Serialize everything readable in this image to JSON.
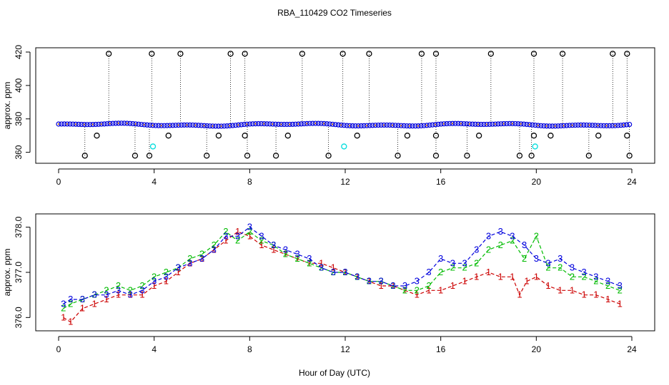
{
  "title": "RBA_110429  CO2 Timeseries",
  "xlabel": "Hour of Day (UTC)",
  "colors": {
    "marker": "#000000",
    "series1": "#cc0000",
    "series2": "#00bb00",
    "series3": "#0000dd",
    "highlight": "#00dddd"
  },
  "chart_data": [
    {
      "type": "scatter",
      "panel": "top",
      "ylabel": "approx. ppm",
      "xlim": [
        0,
        24
      ],
      "ylim": [
        356,
        420
      ],
      "xticks": [
        0,
        4,
        8,
        12,
        16,
        20,
        24
      ],
      "yticks": [
        360,
        380,
        400,
        420
      ],
      "baseline": 376.5,
      "spikes_high": [
        2.1,
        3.9,
        5.1,
        7.2,
        7.8,
        10.2,
        11.9,
        13.0,
        15.2,
        15.8,
        18.1,
        19.9,
        21.1,
        23.2,
        23.8
      ],
      "spikes_low": [
        1.1,
        3.2,
        3.8,
        6.2,
        7.9,
        9.1,
        11.3,
        14.2,
        15.8,
        17.1,
        19.3,
        19.8,
        22.2,
        23.9
      ],
      "mid_low_points": [
        [
          1.6,
          370
        ],
        [
          4.6,
          370
        ],
        [
          6.7,
          370
        ],
        [
          7.8,
          370
        ],
        [
          9.6,
          370
        ],
        [
          12.5,
          370
        ],
        [
          14.6,
          370
        ],
        [
          15.8,
          370
        ],
        [
          17.6,
          370
        ],
        [
          19.9,
          370
        ],
        [
          20.6,
          370
        ],
        [
          22.6,
          370
        ],
        [
          23.8,
          370
        ]
      ],
      "cyan_points": [
        [
          3.95,
          363.5
        ],
        [
          11.95,
          363.5
        ],
        [
          19.95,
          363.5
        ]
      ]
    },
    {
      "type": "line",
      "panel": "bottom",
      "ylabel": "approx. ppm",
      "xlim": [
        0,
        24
      ],
      "ylim": [
        375.8,
        378.2
      ],
      "xticks": [
        0,
        4,
        8,
        12,
        16,
        20,
        24
      ],
      "yticks": [
        "376.0",
        "377.0",
        "378.0"
      ],
      "series": [
        {
          "name": "1",
          "x": [
            0.2,
            0.5,
            1.0,
            1.5,
            2.0,
            2.5,
            3.0,
            3.5,
            4.0,
            4.5,
            5.0,
            5.5,
            6.0,
            6.5,
            7.0,
            7.5,
            8.0,
            8.5,
            9.0,
            9.5,
            10.0,
            10.5,
            11.0,
            11.5,
            12.0,
            12.5,
            13.0,
            13.5,
            14.0,
            14.5,
            15.0,
            15.5,
            16.0,
            16.5,
            17.0,
            17.5,
            18.0,
            18.5,
            19.0,
            19.3,
            19.6,
            20.0,
            20.5,
            21.0,
            21.5,
            22.0,
            22.5,
            23.0,
            23.5
          ],
          "y": [
            376.0,
            375.9,
            376.2,
            376.3,
            376.4,
            376.5,
            376.5,
            376.5,
            376.7,
            376.8,
            377.0,
            377.2,
            377.3,
            377.5,
            377.7,
            377.9,
            377.8,
            377.6,
            377.5,
            377.4,
            377.3,
            377.2,
            377.2,
            377.1,
            377.0,
            376.9,
            376.8,
            376.7,
            376.7,
            376.6,
            376.5,
            376.6,
            376.6,
            376.7,
            376.8,
            376.9,
            377.0,
            376.9,
            376.9,
            376.5,
            376.8,
            376.9,
            376.7,
            376.6,
            376.6,
            376.5,
            376.5,
            376.4,
            376.3
          ]
        },
        {
          "name": "2",
          "x": [
            0.2,
            0.5,
            1.0,
            1.5,
            2.0,
            2.5,
            3.0,
            3.5,
            4.0,
            4.5,
            5.0,
            5.5,
            6.0,
            6.5,
            7.0,
            7.5,
            8.0,
            8.5,
            9.0,
            9.5,
            10.0,
            10.5,
            11.0,
            11.5,
            12.0,
            12.5,
            13.0,
            13.5,
            14.0,
            14.5,
            15.0,
            15.5,
            16.0,
            16.5,
            17.0,
            17.5,
            18.0,
            18.5,
            19.0,
            19.5,
            20.0,
            20.5,
            21.0,
            21.5,
            22.0,
            22.5,
            23.0,
            23.5
          ],
          "y": [
            376.2,
            376.3,
            376.4,
            376.5,
            376.6,
            376.7,
            376.6,
            376.7,
            376.9,
            377.0,
            377.1,
            377.3,
            377.4,
            377.6,
            377.9,
            377.7,
            377.9,
            377.7,
            377.6,
            377.4,
            377.3,
            377.2,
            377.1,
            377.0,
            377.0,
            376.9,
            376.8,
            376.8,
            376.7,
            376.6,
            376.6,
            376.7,
            377.0,
            377.1,
            377.1,
            377.2,
            377.5,
            377.6,
            377.7,
            377.3,
            377.8,
            377.1,
            377.1,
            376.9,
            376.9,
            376.8,
            376.7,
            376.6
          ]
        },
        {
          "name": "3",
          "x": [
            0.2,
            0.5,
            1.0,
            1.5,
            2.0,
            2.5,
            3.0,
            3.5,
            4.0,
            4.5,
            5.0,
            5.5,
            6.0,
            6.5,
            7.0,
            7.5,
            8.0,
            8.5,
            9.0,
            9.5,
            10.0,
            10.5,
            11.0,
            11.5,
            12.0,
            12.5,
            13.0,
            13.5,
            14.0,
            14.5,
            15.0,
            15.5,
            16.0,
            16.5,
            17.0,
            17.5,
            18.0,
            18.5,
            19.0,
            19.5,
            20.0,
            20.5,
            21.0,
            21.5,
            22.0,
            22.5,
            23.0,
            23.5
          ],
          "y": [
            376.3,
            376.4,
            376.4,
            376.5,
            376.5,
            376.6,
            376.5,
            376.6,
            376.8,
            376.9,
            377.1,
            377.2,
            377.3,
            377.5,
            377.8,
            377.8,
            378.0,
            377.8,
            377.6,
            377.5,
            377.4,
            377.3,
            377.1,
            377.0,
            377.0,
            376.9,
            376.8,
            376.8,
            376.7,
            376.7,
            376.8,
            377.0,
            377.3,
            377.2,
            377.2,
            377.5,
            377.8,
            377.9,
            377.8,
            377.6,
            377.3,
            377.2,
            377.3,
            377.1,
            377.0,
            376.9,
            376.8,
            376.7
          ]
        }
      ]
    }
  ]
}
